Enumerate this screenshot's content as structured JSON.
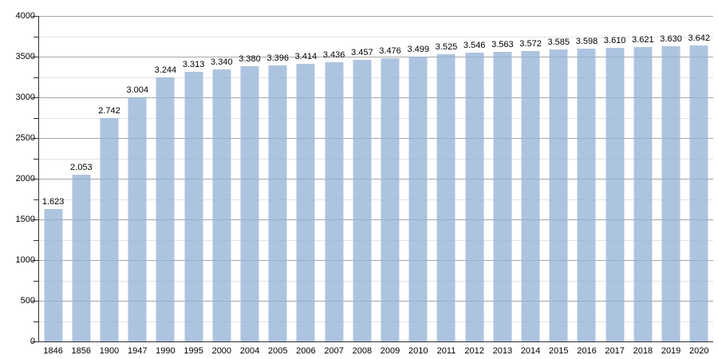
{
  "chart_data": {
    "type": "bar",
    "title": "",
    "xlabel": "",
    "ylabel": "",
    "categories": [
      "1846",
      "1856",
      "1900",
      "1947",
      "1990",
      "1995",
      "2000",
      "2004",
      "2005",
      "2006",
      "2007",
      "2008",
      "2009",
      "2010",
      "2011",
      "2012",
      "2013",
      "2014",
      "2015",
      "2016",
      "2017",
      "2018",
      "2019",
      "2020"
    ],
    "values": [
      1623,
      2053,
      2742,
      3004,
      3244,
      3313,
      3340,
      3380,
      3396,
      3414,
      3436,
      3457,
      3476,
      3499,
      3525,
      3546,
      3563,
      3572,
      3585,
      3598,
      3610,
      3621,
      3630,
      3642
    ],
    "value_labels": [
      "1.623",
      "2.053",
      "2.742",
      "3.004",
      "3.244",
      "3.313",
      "3.340",
      "3.380",
      "3.396",
      "3.414",
      "3.436",
      "3.457",
      "3.476",
      "3.499",
      "3.525",
      "3.546",
      "3.563",
      "3.572",
      "3.585",
      "3.598",
      "3.610",
      "3.621",
      "3.630",
      "3.642"
    ],
    "ylim": [
      0,
      4000
    ],
    "y_major_step": 500,
    "y_minor_step": 250,
    "y_tick_labels": [
      "0",
      "500",
      "1000",
      "1500",
      "2000",
      "2500",
      "3000",
      "3500",
      "4000"
    ],
    "grid": true,
    "legend_position": "none",
    "bar_color": "#B0C4DE",
    "major_grid_color": "#a6a6a6",
    "minor_grid_color": "#e3e3e3",
    "axis_color": "#333333",
    "text_color": "#000000"
  }
}
